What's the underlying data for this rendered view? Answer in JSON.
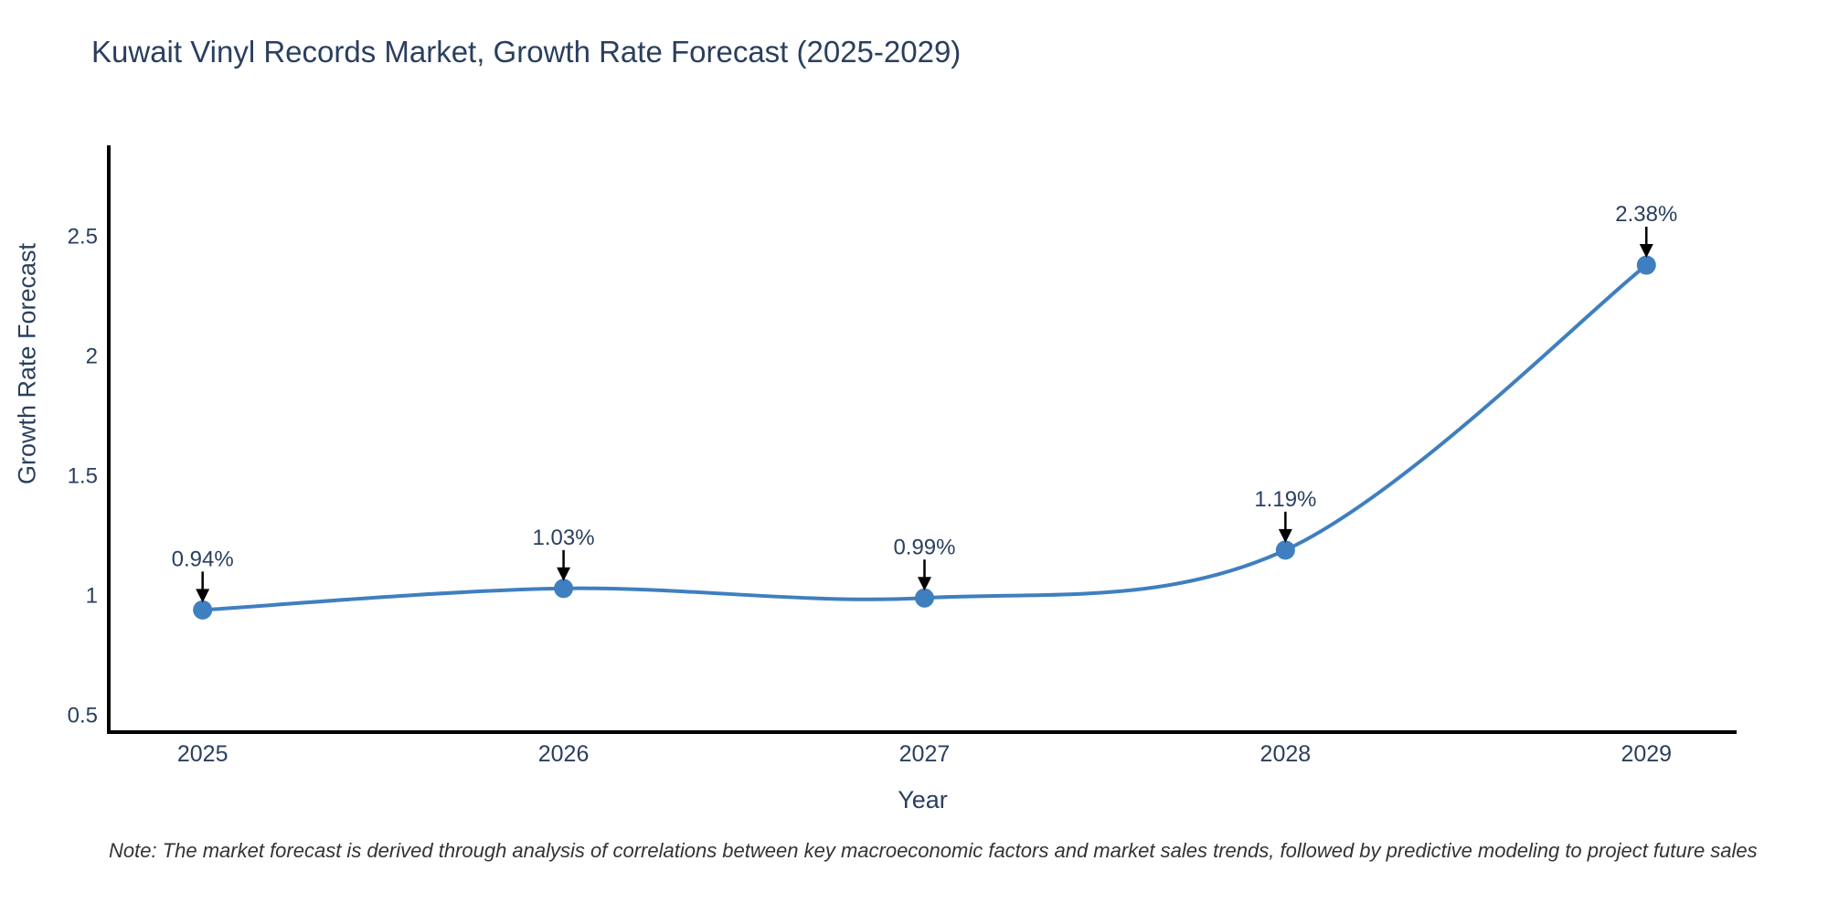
{
  "chart_data": {
    "type": "line",
    "title": "Kuwait Vinyl Records Market, Growth Rate Forecast (2025-2029)",
    "xlabel": "Year",
    "ylabel": "Growth Rate Forecast",
    "note": "Note: The market forecast is derived through analysis of correlations between key macroeconomic factors and market sales trends, followed by predictive modeling to project future sales",
    "x": [
      2025,
      2026,
      2027,
      2028,
      2029
    ],
    "values": [
      0.94,
      1.03,
      0.99,
      1.19,
      2.38
    ],
    "point_labels": [
      "0.94%",
      "1.03%",
      "0.99%",
      "1.19%",
      "2.38%"
    ],
    "xticks": [
      "2025",
      "2026",
      "2027",
      "2028",
      "2029"
    ],
    "yticks": [
      0.5,
      1,
      1.5,
      2,
      2.5
    ],
    "ytick_labels": [
      "0.5",
      "1",
      "1.5",
      "2",
      "2.5"
    ],
    "xlim": [
      2024.74,
      2029.25
    ],
    "ylim": [
      0.43,
      2.88
    ],
    "grid": false,
    "legend": false,
    "line_shape": "spline",
    "annotations_arrow": "down",
    "colors": {
      "line": "#3f7fbf",
      "marker": "#3f7fbf",
      "text": "#2a3f5f",
      "axis": "#000000",
      "arrow": "#000000",
      "note_text": "#333333",
      "background": "#ffffff"
    }
  }
}
